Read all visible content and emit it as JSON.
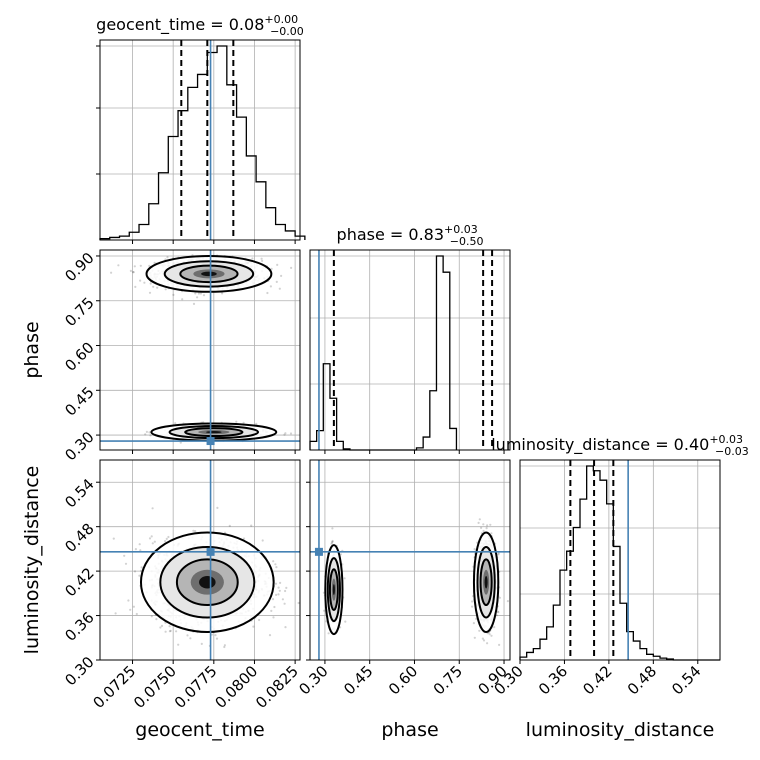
{
  "chart_data": {
    "type": "corner",
    "parameters": [
      {
        "name": "geocent_time",
        "range": [
          0.0705,
          0.0828
        ],
        "ticks": [
          0.0725,
          0.075,
          0.0775,
          0.08,
          0.0825
        ],
        "tick_labels": [
          "0.0725",
          "0.0750",
          "0.0775",
          "0.0800",
          "0.0825"
        ],
        "truth": 0.0773,
        "title": {
          "label": "geocent_time = 0.08",
          "sup": "+0.00",
          "sub": "−0.00"
        },
        "quantiles": [
          0.0755,
          0.0771,
          0.0787
        ],
        "hist": {
          "edges_start": 0.0705,
          "bin_width": 0.0006,
          "counts": [
            1,
            2,
            3,
            6,
            12,
            28,
            52,
            80,
            100,
            118,
            128,
            145,
            150,
            120,
            95,
            65,
            45,
            25,
            12,
            7,
            3
          ]
        }
      },
      {
        "name": "phase",
        "range": [
          0.25,
          0.92
        ],
        "ticks": [
          0.3,
          0.45,
          0.6,
          0.75,
          0.9
        ],
        "tick_labels": [
          "0.30",
          "0.45",
          "0.60",
          "0.75",
          "0.90"
        ],
        "truth": 0.28,
        "title": {
          "label": "phase = 0.83",
          "sup": "+0.03",
          "sub": "−0.50"
        },
        "quantiles": [
          0.33,
          0.83,
          0.86
        ],
        "hist": {
          "edges_start": 0.25,
          "bin_width": 0.0223,
          "counts": [
            8,
            18,
            80,
            48,
            8,
            1,
            0,
            0,
            0,
            0,
            0,
            0,
            0,
            0,
            0,
            0,
            2,
            12,
            55,
            180,
            165,
            20
          ]
        }
      },
      {
        "name": "luminosity_distance",
        "range": [
          0.3,
          0.57
        ],
        "ticks": [
          0.3,
          0.36,
          0.42,
          0.48,
          0.54
        ],
        "tick_labels": [
          "0.30",
          "0.36",
          "0.42",
          "0.48",
          "0.54"
        ],
        "truth": 0.446,
        "title": {
          "label": "luminosity_distance = 0.40",
          "sup": "+0.03",
          "sub": "−0.03"
        },
        "quantiles": [
          0.368,
          0.4,
          0.426
        ],
        "hist": {
          "edges_start": 0.3,
          "bin_width": 0.009,
          "counts": [
            3,
            8,
            12,
            22,
            35,
            58,
            95,
            115,
            140,
            170,
            205,
            200,
            190,
            165,
            120,
            60,
            30,
            20,
            12,
            6,
            4,
            2,
            1,
            0,
            0,
            0,
            0,
            0,
            0,
            0
          ]
        }
      }
    ],
    "modes_2d": {
      "geocent_time_vs_phase": [
        {
          "center": [
            0.0772,
            0.84
          ],
          "spread": [
            0.0016,
            0.025
          ],
          "weight": 0.8
        },
        {
          "center": [
            0.0775,
            0.31
          ],
          "spread": [
            0.0016,
            0.012
          ],
          "weight": 0.2
        }
      ],
      "geocent_time_vs_luminosity_distance": [
        {
          "center": [
            0.0771,
            0.405
          ],
          "spread": [
            0.0017,
            0.028
          ],
          "weight": 1.0
        }
      ],
      "phase_vs_luminosity_distance": [
        {
          "center": [
            0.33,
            0.395
          ],
          "spread": [
            0.012,
            0.025
          ],
          "weight": 0.25
        },
        {
          "center": [
            0.84,
            0.405
          ],
          "spread": [
            0.017,
            0.028
          ],
          "weight": 0.75
        }
      ]
    },
    "grid": true,
    "quantile_levels": [
      0.16,
      0.5,
      0.84
    ],
    "colors": {
      "truth": "#4682b4",
      "contour": "#000000",
      "grid": "#b0b0b0"
    }
  }
}
